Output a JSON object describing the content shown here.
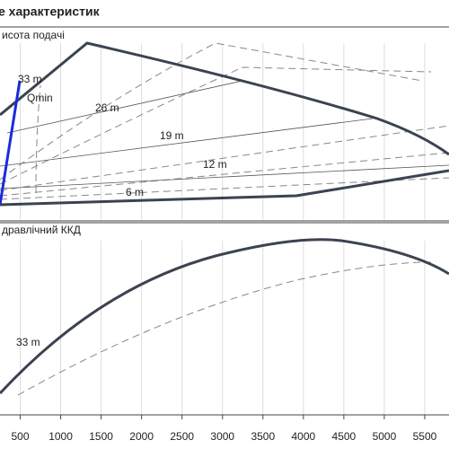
{
  "chart_data": {
    "type": "line",
    "title": "е характеристик",
    "panel_labels": [
      "исота подачі",
      "дравлічний ККД"
    ],
    "curve_labels": [
      "33 m",
      "Qmin",
      "26 m",
      "19 m",
      "12 m",
      "6 m",
      "33 m"
    ],
    "xlim": [
      250,
      5800
    ],
    "xticks": [
      500,
      1000,
      1500,
      2000,
      2500,
      3000,
      3500,
      4000,
      4500,
      5000,
      5500
    ],
    "grid": true
  }
}
